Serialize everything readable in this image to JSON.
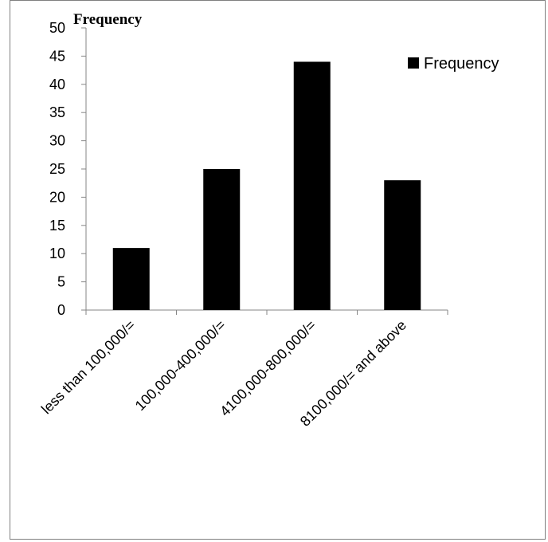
{
  "chart_data": {
    "type": "bar",
    "title": "Frequency",
    "categories": [
      "less than 100,000/=",
      "100,000-400,000/=",
      "4100,000-800,000/=",
      "8100,000/= and above"
    ],
    "series": [
      {
        "name": "Frequency",
        "values": [
          11,
          25,
          44,
          23
        ],
        "color": "#000000"
      }
    ],
    "ylim": [
      0,
      50
    ],
    "yticks": [
      0,
      5,
      10,
      15,
      20,
      25,
      30,
      35,
      40,
      45,
      50
    ],
    "grid": false,
    "legend": "right",
    "xlabel": "",
    "ylabel": ""
  }
}
